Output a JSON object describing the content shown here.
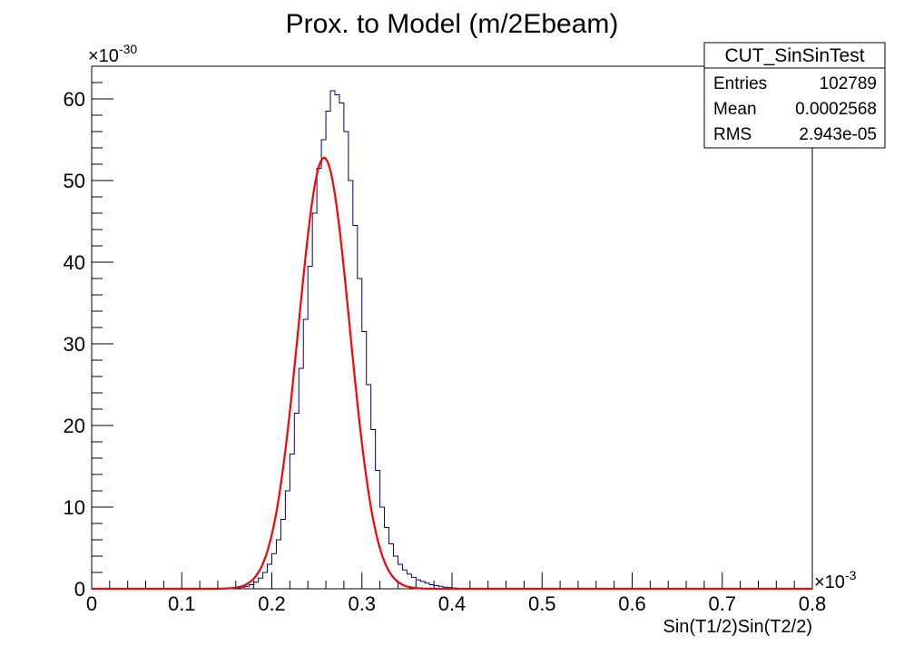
{
  "chart_data": {
    "type": "histogram",
    "title": "Prox. to Model (m/2Ebeam)",
    "xlabel": "Sin(T1/2)Sin(T2/2)",
    "ylabel": "",
    "x_multiplier": "×10",
    "x_multiplier_exp": "-3",
    "y_multiplier": "×10",
    "y_multiplier_exp": "-30",
    "xlim": [
      0,
      0.8
    ],
    "ylim": [
      0,
      64
    ],
    "x_ticks": [
      {
        "value": 0,
        "label": "0"
      },
      {
        "value": 0.1,
        "label": "0.1"
      },
      {
        "value": 0.2,
        "label": "0.2"
      },
      {
        "value": 0.3,
        "label": "0.3"
      },
      {
        "value": 0.4,
        "label": "0.4"
      },
      {
        "value": 0.5,
        "label": "0.5"
      },
      {
        "value": 0.6,
        "label": "0.6"
      },
      {
        "value": 0.7,
        "label": "0.7"
      },
      {
        "value": 0.8,
        "label": "0.8"
      }
    ],
    "y_ticks": [
      {
        "value": 0,
        "label": "0"
      },
      {
        "value": 10,
        "label": "10"
      },
      {
        "value": 20,
        "label": "20"
      },
      {
        "value": 30,
        "label": "30"
      },
      {
        "value": 40,
        "label": "40"
      },
      {
        "value": 50,
        "label": "50"
      },
      {
        "value": 60,
        "label": "60"
      }
    ],
    "bin_width": 0.005,
    "bins": [
      [
        0.16,
        0.1
      ],
      [
        0.165,
        0.2
      ],
      [
        0.17,
        0.3
      ],
      [
        0.175,
        0.5
      ],
      [
        0.18,
        0.8
      ],
      [
        0.185,
        1.3
      ],
      [
        0.19,
        2.0
      ],
      [
        0.195,
        3.0
      ],
      [
        0.2,
        4.3
      ],
      [
        0.205,
        6.0
      ],
      [
        0.21,
        8.5
      ],
      [
        0.215,
        12.0
      ],
      [
        0.22,
        16.5
      ],
      [
        0.225,
        21.5
      ],
      [
        0.23,
        27.0
      ],
      [
        0.235,
        33.0
      ],
      [
        0.24,
        39.5
      ],
      [
        0.245,
        46.0
      ],
      [
        0.25,
        51.5
      ],
      [
        0.255,
        55.0
      ],
      [
        0.26,
        58.5
      ],
      [
        0.265,
        61.0
      ],
      [
        0.27,
        60.5
      ],
      [
        0.275,
        59.5
      ],
      [
        0.28,
        56.0
      ],
      [
        0.285,
        50.0
      ],
      [
        0.29,
        44.5
      ],
      [
        0.295,
        38.0
      ],
      [
        0.3,
        31.5
      ],
      [
        0.305,
        25.0
      ],
      [
        0.31,
        19.5
      ],
      [
        0.315,
        14.5
      ],
      [
        0.32,
        10.0
      ],
      [
        0.325,
        7.5
      ],
      [
        0.33,
        5.5
      ],
      [
        0.335,
        4.0
      ],
      [
        0.34,
        3.0
      ],
      [
        0.345,
        2.3
      ],
      [
        0.35,
        1.8
      ],
      [
        0.355,
        1.4
      ],
      [
        0.36,
        1.1
      ],
      [
        0.365,
        0.9
      ],
      [
        0.37,
        0.7
      ],
      [
        0.375,
        0.5
      ],
      [
        0.38,
        0.4
      ],
      [
        0.385,
        0.3
      ],
      [
        0.39,
        0.2
      ],
      [
        0.395,
        0.15
      ],
      [
        0.4,
        0.1
      ]
    ],
    "fit": {
      "type": "gaussian",
      "amplitude": 52.8,
      "mean": 0.000258,
      "sigma": 2.85e-05,
      "color": "#ff0000"
    },
    "hist_color": "#000080",
    "stats_box": {
      "name": "CUT_SinSinTest",
      "rows": [
        {
          "label": "Entries",
          "value": "102789"
        },
        {
          "label": "Mean",
          "value": "0.0002568"
        },
        {
          "label": "RMS",
          "value": "2.943e-05"
        }
      ]
    },
    "grid": false
  }
}
